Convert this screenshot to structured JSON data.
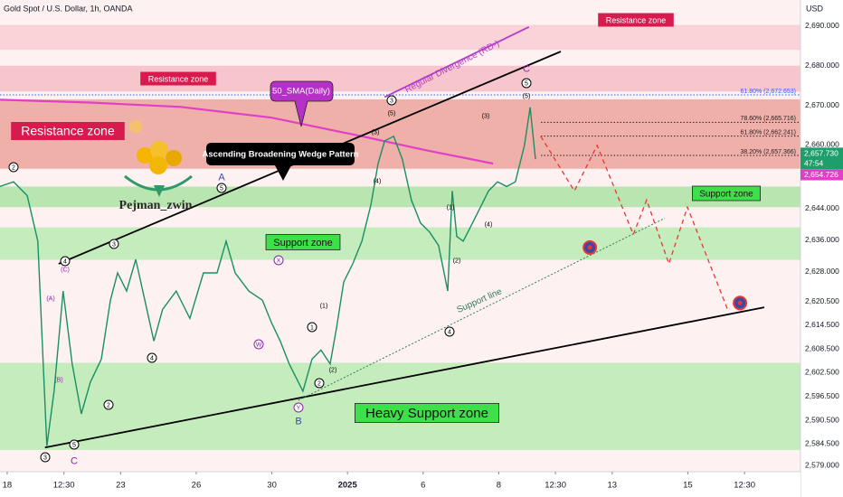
{
  "chart_data": {
    "type": "line",
    "title": "Gold Spot / U.S. Dollar, 1h, OANDA",
    "currency": "USD",
    "author": "Pejman_zwin",
    "xlim": [
      -0.19,
      20.98
    ],
    "ylim": [
      2577.5,
      2696.6
    ],
    "xticks": [
      {
        "value": 0,
        "label": "18"
      },
      {
        "value": 1.5,
        "label": "12:30"
      },
      {
        "value": 3,
        "label": "23"
      },
      {
        "value": 5,
        "label": "26"
      },
      {
        "value": 7,
        "label": "30"
      },
      {
        "value": 9,
        "label": "2025"
      },
      {
        "value": 11,
        "label": "6"
      },
      {
        "value": 13,
        "label": "8"
      },
      {
        "value": 14.5,
        "label": "12:30"
      },
      {
        "value": 16,
        "label": "13"
      },
      {
        "value": 18,
        "label": "15"
      },
      {
        "value": 19.5,
        "label": "12:30"
      }
    ],
    "yticks": [
      {
        "value": 2690,
        "label": "2,690.000"
      },
      {
        "value": 2680,
        "label": "2,680.000"
      },
      {
        "value": 2670,
        "label": "2,670.000"
      },
      {
        "value": 2660,
        "label": "2,660.000"
      },
      {
        "value": 2644,
        "label": "2,644.000"
      },
      {
        "value": 2636,
        "label": "2,636.000"
      },
      {
        "value": 2628,
        "label": "2,628.000"
      },
      {
        "value": 2620.5,
        "label": "2,620.500"
      },
      {
        "value": 2614.5,
        "label": "2,614.500"
      },
      {
        "value": 2608.5,
        "label": "2,608.500"
      },
      {
        "value": 2602.5,
        "label": "2,602.500"
      },
      {
        "value": 2596.5,
        "label": "2,596.500"
      },
      {
        "value": 2590.5,
        "label": "2,590.500"
      },
      {
        "value": 2584.5,
        "label": "2,584.500"
      },
      {
        "value": 2579,
        "label": "2,579.000"
      }
    ],
    "price": {
      "color": "#1a8f63",
      "x": [
        -0.19,
        0.17,
        0.53,
        0.81,
        1.05,
        1.24,
        1.48,
        1.72,
        1.96,
        2.2,
        2.49,
        2.73,
        2.92,
        3.16,
        3.4,
        3.64,
        3.88,
        4.11,
        4.47,
        4.83,
        5.19,
        5.55,
        5.79,
        6.03,
        6.39,
        6.75,
        6.99,
        7.22,
        7.46,
        7.82,
        8.06,
        8.3,
        8.54,
        8.71,
        8.9,
        9.14,
        9.38,
        9.62,
        9.81,
        9.98,
        10.22,
        10.45,
        10.69,
        10.93,
        11.17,
        11.41,
        11.65,
        11.77,
        11.89,
        12.06,
        12.25,
        12.49,
        12.73,
        12.97,
        13.21,
        13.44,
        13.68,
        13.83,
        13.97
      ],
      "values": [
        2649.5,
        2650.7,
        2647.2,
        2635.7,
        2584.0,
        2597.8,
        2623.1,
        2604.7,
        2592.1,
        2600.1,
        2605.9,
        2620.8,
        2627.7,
        2623.1,
        2631.1,
        2620.8,
        2610.5,
        2618.5,
        2623.1,
        2616.2,
        2627.7,
        2627.7,
        2635.7,
        2627.7,
        2623.1,
        2620.8,
        2615.1,
        2610.5,
        2604.7,
        2597.8,
        2605.9,
        2608.2,
        2604.7,
        2613.9,
        2625.4,
        2630.0,
        2635.7,
        2644.9,
        2655.3,
        2661.0,
        2662.2,
        2656.4,
        2646.1,
        2640.3,
        2638.0,
        2634.6,
        2623.1,
        2648.4,
        2636.9,
        2635.7,
        2639.2,
        2643.8,
        2648.4,
        2650.7,
        2649.5,
        2650.7,
        2659.9,
        2669.5,
        2656.4
      ]
    },
    "sma": {
      "name": "50_SMA(Daily)",
      "color": "#e040c8",
      "x": [
        -0.19,
        2.2,
        4.59,
        6.99,
        9.38,
        11.05,
        12.85
      ],
      "values": [
        2671.4,
        2670.7,
        2669.6,
        2666.9,
        2662.2,
        2658.7,
        2655.3
      ]
    },
    "last_price": {
      "value": 2657.73,
      "label": "2,657.730",
      "color": "#1e9e6a"
    },
    "countdown": "47:54",
    "sma_last": {
      "value": 2654.726,
      "label": "2,654.726"
    },
    "zones": [
      {
        "label": "Resistance zone",
        "low": 2684,
        "high": 2690.3,
        "color": "#f9d3d8"
      },
      {
        "label": "Resistance zone",
        "low": 2673.5,
        "high": 2680,
        "color": "#f7c6cc"
      },
      {
        "label": "Resistance zone",
        "low": 2654,
        "high": 2671.5,
        "color": "#efb0aa"
      },
      {
        "label": "Support zone",
        "low": 2644.3,
        "high": 2649.5,
        "color": "#b9e6b0"
      },
      {
        "label": "Support zone",
        "low": 2631,
        "high": 2639.2,
        "color": "#c5ecbd"
      },
      {
        "label": "Heavy Support zone",
        "low": 2583,
        "high": 2605,
        "color": "#c5ecbd"
      }
    ],
    "fib": [
      {
        "value": 2672.653,
        "label": "61.80% (2,672.653)",
        "color": "#2962ff"
      },
      {
        "value": 2665.716,
        "label": "78.60% (2,665.716)",
        "color": "#222222"
      },
      {
        "value": 2662.241,
        "label": "61.80% (2,662.241)",
        "color": "#222222"
      },
      {
        "value": 2657.366,
        "label": "38.20% (2,657.366)",
        "color": "#222222"
      }
    ],
    "trendlines": [
      {
        "name": "Ascending Broadening Wedge Pattern",
        "x": [
          1.36,
          14.64
        ],
        "values": [
          2630,
          2683.6
        ],
        "color": "#000000",
        "dashed": false
      },
      {
        "x": [
          1.0,
          20.02
        ],
        "values": [
          2583.6,
          2619
        ],
        "color": "#000000",
        "dashed": false
      },
      {
        "name": "Support line",
        "x": [
          7.7,
          17.39
        ],
        "values": [
          2595.5,
          2641.5
        ],
        "color": "#2e7d5b",
        "dashed": true
      },
      {
        "name": "Regular Divergence (RD-)",
        "x": [
          9.98,
          13.8
        ],
        "values": [
          2672.1,
          2689.8
        ],
        "color": "#b43cc8",
        "dashed": false
      }
    ],
    "projection": {
      "color": "#e53935",
      "x": [
        14.11,
        15.0,
        15.6,
        16.56,
        16.91,
        17.5,
        17.99,
        19.07
      ],
      "values": [
        2662.2,
        2648.4,
        2659.9,
        2637.4,
        2646.1,
        2630.0,
        2644.3,
        2618.0
      ]
    },
    "targets": {
      "color": "#e53935",
      "x": [
        15.41,
        19.38
      ],
      "values": [
        2634.1,
        2620.1
      ]
    },
    "waves": [
      {
        "text": "2",
        "circled": true,
        "color": "#000"
      },
      {
        "text": "4",
        "circled": true,
        "color": "#000"
      },
      {
        "text": "(C)",
        "circled": false,
        "color": "#8e24aa"
      },
      {
        "text": "(A)",
        "circled": false,
        "color": "#8e24aa"
      },
      {
        "text": "(B)",
        "circled": false,
        "color": "#8e24aa"
      },
      {
        "text": "3",
        "circled": true,
        "color": "#000"
      },
      {
        "text": "5",
        "circled": true,
        "color": "#000"
      },
      {
        "text": "C",
        "circled": false,
        "color": "#8e24aa"
      },
      {
        "text": "3",
        "circled": true,
        "color": "#000"
      },
      {
        "text": "2",
        "circled": true,
        "color": "#000"
      },
      {
        "text": "4",
        "circled": true,
        "color": "#000"
      },
      {
        "text": "A",
        "circled": false,
        "color": "#3949ab"
      },
      {
        "text": "5",
        "circled": true,
        "color": "#000"
      },
      {
        "text": "X",
        "circled": true,
        "color": "#8e24aa"
      },
      {
        "text": "W",
        "circled": true,
        "color": "#8e24aa"
      },
      {
        "text": "Y",
        "circled": true,
        "color": "#8e24aa"
      },
      {
        "text": "B",
        "circled": false,
        "color": "#3949ab"
      },
      {
        "text": "1",
        "circled": true,
        "color": "#000"
      },
      {
        "text": "(1)",
        "circled": false,
        "color": "#000"
      },
      {
        "text": "2",
        "circled": true,
        "color": "#000"
      },
      {
        "text": "(2)",
        "circled": false,
        "color": "#000"
      },
      {
        "text": "3",
        "circled": true,
        "color": "#000"
      },
      {
        "text": "(5)",
        "circled": false,
        "color": "#000"
      },
      {
        "text": "(3)",
        "circled": false,
        "color": "#000"
      },
      {
        "text": "(4)",
        "circled": false,
        "color": "#000"
      },
      {
        "text": "(1)",
        "circled": false,
        "color": "#000"
      },
      {
        "text": "(2)",
        "circled": false,
        "color": "#000"
      },
      {
        "text": "4",
        "circled": true,
        "color": "#000"
      },
      {
        "text": "(4)",
        "circled": false,
        "color": "#000"
      },
      {
        "text": "(3)",
        "circled": false,
        "color": "#000"
      },
      {
        "text": "C",
        "circled": false,
        "color": "#8e24aa"
      },
      {
        "text": "5",
        "circled": true,
        "color": "#000"
      },
      {
        "text": "(5)",
        "circled": false,
        "color": "#000"
      }
    ]
  }
}
